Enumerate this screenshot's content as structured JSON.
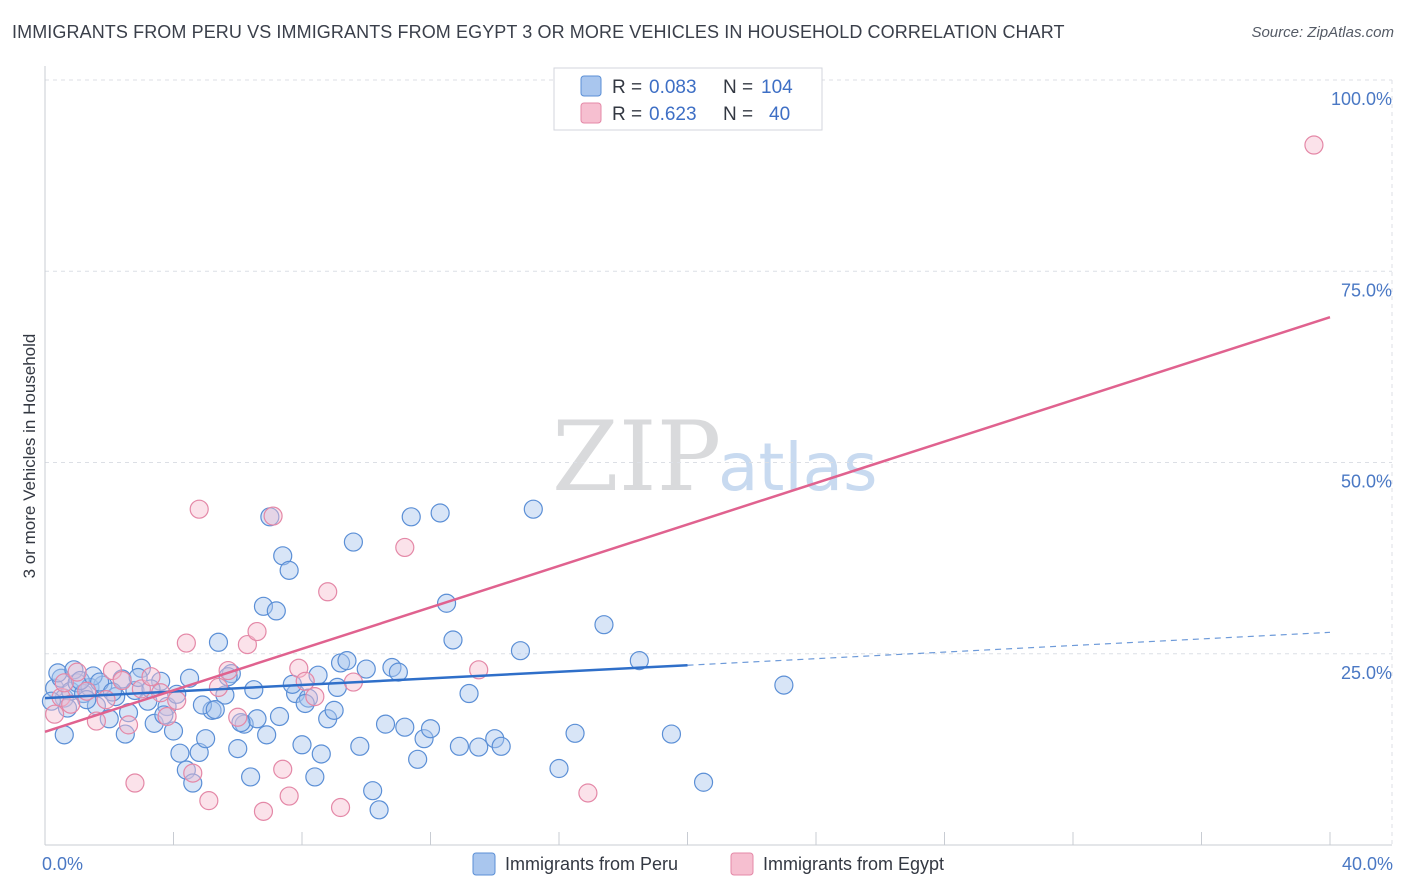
{
  "title": "IMMIGRANTS FROM PERU VS IMMIGRANTS FROM EGYPT 3 OR MORE VEHICLES IN HOUSEHOLD CORRELATION CHART",
  "source": "Source: ZipAtlas.com",
  "watermark": {
    "part1": "ZIP",
    "part2": "atlas"
  },
  "colors": {
    "peru_fill": "#a9c6ee",
    "peru_stroke": "#5b8fd6",
    "peru_line": "#2f6fc9",
    "egypt_fill": "#f6bfd0",
    "egypt_stroke": "#e488a7",
    "egypt_line": "#e0628f",
    "grid": "#dcdfe5",
    "axis": "#c8ccd3"
  },
  "legend": {
    "rows": [
      {
        "r_label": "R =",
        "r_value": "0.083",
        "n_label": "N =",
        "n_value": "104"
      },
      {
        "r_label": "R =",
        "r_value": "0.623",
        "n_label": "N =",
        "n_value": "40"
      }
    ]
  },
  "chart_data": {
    "type": "scatter",
    "title": "IMMIGRANTS FROM PERU VS IMMIGRANTS FROM EGYPT 3 OR MORE VEHICLES IN HOUSEHOLD CORRELATION CHART",
    "xlabel": "",
    "ylabel": "3 or more Vehicles in Household",
    "xlim": [
      0,
      40
    ],
    "ylim": [
      0,
      100
    ],
    "x_tick_labels": [
      "0.0%",
      "40.0%"
    ],
    "y_ticks": [
      25,
      50,
      75,
      100
    ],
    "y_tick_labels": [
      "25.0%",
      "50.0%",
      "75.0%",
      "100.0%"
    ],
    "grid": true,
    "legend_position": "top-center",
    "series": [
      {
        "name": "Immigrants from Peru",
        "R": 0.083,
        "N": 104,
        "trend": {
          "x0": 0,
          "y0": 19.2,
          "x1": 20,
          "y1": 23.5,
          "dashed_to_x": 40,
          "dashed_to_y": 27.8
        },
        "points": [
          [
            0.3,
            20.5
          ],
          [
            0.5,
            21.8
          ],
          [
            0.6,
            19.2
          ],
          [
            0.4,
            22.5
          ],
          [
            0.8,
            20.1
          ],
          [
            0.7,
            17.9
          ],
          [
            1.0,
            21.2
          ],
          [
            1.2,
            19.8
          ],
          [
            0.9,
            22.9
          ],
          [
            1.4,
            20.6
          ],
          [
            1.6,
            18.2
          ],
          [
            1.1,
            21.5
          ],
          [
            1.8,
            20.9
          ],
          [
            2.0,
            16.5
          ],
          [
            2.2,
            19.4
          ],
          [
            1.5,
            22.1
          ],
          [
            2.4,
            21.7
          ],
          [
            2.6,
            17.3
          ],
          [
            2.8,
            20.2
          ],
          [
            3.0,
            23.1
          ],
          [
            2.5,
            14.5
          ],
          [
            3.2,
            18.8
          ],
          [
            3.4,
            15.9
          ],
          [
            3.6,
            21.4
          ],
          [
            3.8,
            18.1
          ],
          [
            4.0,
            14.9
          ],
          [
            4.2,
            12.0
          ],
          [
            4.4,
            9.8
          ],
          [
            4.6,
            8.1
          ],
          [
            4.8,
            12.1
          ],
          [
            5.0,
            13.9
          ],
          [
            5.2,
            17.6
          ],
          [
            5.4,
            26.5
          ],
          [
            5.6,
            19.6
          ],
          [
            5.8,
            22.4
          ],
          [
            6.0,
            12.6
          ],
          [
            6.2,
            15.8
          ],
          [
            6.4,
            8.9
          ],
          [
            6.6,
            16.5
          ],
          [
            6.8,
            31.2
          ],
          [
            7.0,
            42.9
          ],
          [
            7.2,
            30.6
          ],
          [
            7.4,
            37.8
          ],
          [
            7.6,
            35.9
          ],
          [
            7.8,
            19.8
          ],
          [
            8.0,
            13.1
          ],
          [
            8.2,
            19.2
          ],
          [
            8.4,
            8.9
          ],
          [
            8.6,
            11.9
          ],
          [
            8.8,
            16.5
          ],
          [
            9.0,
            17.6
          ],
          [
            9.2,
            23.8
          ],
          [
            9.4,
            24.1
          ],
          [
            9.6,
            39.6
          ],
          [
            9.8,
            12.9
          ],
          [
            10.0,
            23.0
          ],
          [
            10.2,
            7.1
          ],
          [
            10.4,
            4.6
          ],
          [
            10.6,
            15.8
          ],
          [
            10.8,
            23.2
          ],
          [
            11.0,
            22.6
          ],
          [
            11.2,
            15.4
          ],
          [
            11.4,
            42.9
          ],
          [
            11.6,
            11.2
          ],
          [
            11.8,
            13.9
          ],
          [
            12.0,
            15.2
          ],
          [
            12.3,
            43.4
          ],
          [
            12.5,
            31.6
          ],
          [
            12.7,
            26.8
          ],
          [
            12.9,
            12.9
          ],
          [
            13.2,
            19.8
          ],
          [
            13.5,
            12.8
          ],
          [
            14.0,
            13.9
          ],
          [
            14.2,
            12.9
          ],
          [
            14.8,
            25.4
          ],
          [
            15.2,
            43.9
          ],
          [
            16.0,
            10.0
          ],
          [
            16.5,
            14.6
          ],
          [
            17.4,
            28.8
          ],
          [
            18.5,
            24.1
          ],
          [
            19.5,
            14.5
          ],
          [
            20.5,
            8.2
          ],
          [
            23.0,
            20.9
          ],
          [
            1.3,
            19.0
          ],
          [
            0.2,
            18.8
          ],
          [
            0.6,
            14.4
          ],
          [
            1.7,
            21.3
          ],
          [
            2.1,
            20.0
          ],
          [
            2.9,
            21.9
          ],
          [
            3.3,
            20.4
          ],
          [
            3.7,
            17.0
          ],
          [
            4.1,
            19.7
          ],
          [
            4.5,
            21.8
          ],
          [
            4.9,
            18.3
          ],
          [
            5.3,
            17.7
          ],
          [
            5.7,
            22.0
          ],
          [
            6.1,
            16.0
          ],
          [
            6.5,
            20.3
          ],
          [
            6.9,
            14.4
          ],
          [
            7.3,
            16.8
          ],
          [
            7.7,
            21.0
          ],
          [
            8.1,
            18.5
          ],
          [
            8.5,
            22.2
          ],
          [
            9.1,
            20.6
          ]
        ]
      },
      {
        "name": "Immigrants from Egypt",
        "R": 0.623,
        "N": 40,
        "trend": {
          "x0": 0,
          "y0": 14.8,
          "x1": 40,
          "y1": 69.0
        },
        "points": [
          [
            0.3,
            17.1
          ],
          [
            0.5,
            19.3
          ],
          [
            0.6,
            21.2
          ],
          [
            0.8,
            18.4
          ],
          [
            1.0,
            22.6
          ],
          [
            1.3,
            20.1
          ],
          [
            1.6,
            16.2
          ],
          [
            1.9,
            19.0
          ],
          [
            2.1,
            22.8
          ],
          [
            2.4,
            21.5
          ],
          [
            2.6,
            15.7
          ],
          [
            2.8,
            8.1
          ],
          [
            3.0,
            20.4
          ],
          [
            3.3,
            22.0
          ],
          [
            3.6,
            19.9
          ],
          [
            3.8,
            16.8
          ],
          [
            4.1,
            18.9
          ],
          [
            4.4,
            26.4
          ],
          [
            4.6,
            9.4
          ],
          [
            4.8,
            43.9
          ],
          [
            5.1,
            5.8
          ],
          [
            5.4,
            20.6
          ],
          [
            5.7,
            22.8
          ],
          [
            6.0,
            16.7
          ],
          [
            6.3,
            26.2
          ],
          [
            6.6,
            27.9
          ],
          [
            6.8,
            4.4
          ],
          [
            7.1,
            43.0
          ],
          [
            7.4,
            9.9
          ],
          [
            7.6,
            6.4
          ],
          [
            7.9,
            23.1
          ],
          [
            8.1,
            21.4
          ],
          [
            8.4,
            19.4
          ],
          [
            8.8,
            33.1
          ],
          [
            9.2,
            4.9
          ],
          [
            9.6,
            21.3
          ],
          [
            11.2,
            38.9
          ],
          [
            13.5,
            22.9
          ],
          [
            16.9,
            6.8
          ],
          [
            39.5,
            91.5
          ]
        ]
      }
    ]
  },
  "bottom_legend": [
    {
      "label": "Immigrants from Peru"
    },
    {
      "label": "Immigrants from Egypt"
    }
  ]
}
